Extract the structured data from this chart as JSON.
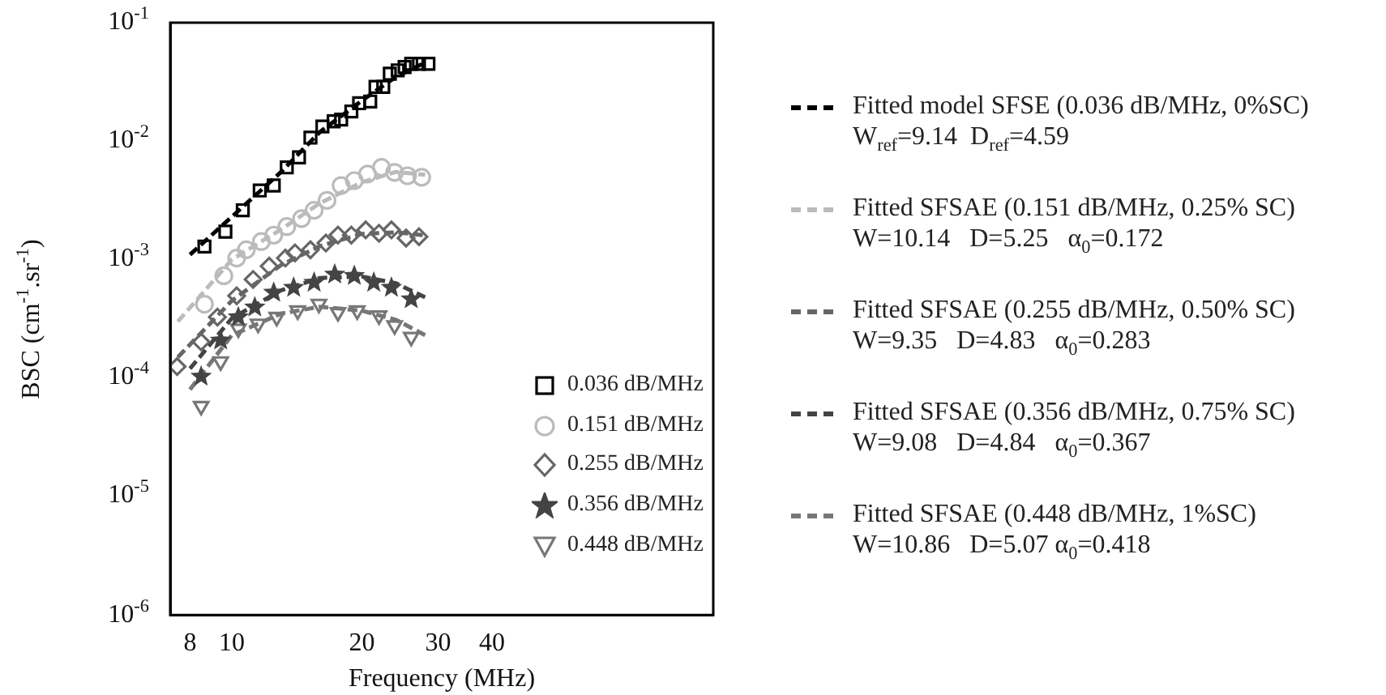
{
  "chart_data": {
    "type": "scatter",
    "xlabel": "Frequency (MHz)",
    "ylabel": "BSC (cm$^{-1}$.sr$^{-1}$)",
    "log": "xy",
    "xlim": [
      7.2,
      130
    ],
    "xticks": [
      8,
      10,
      20,
      30,
      40
    ],
    "ylim": [
      1e-06,
      0.1
    ],
    "yticks": [
      {
        "value": 0.1,
        "label": "10$^{-1}$"
      },
      {
        "value": 0.01,
        "label": "10$^{-2}$"
      },
      {
        "value": 0.001,
        "label": "10$^{-3}$"
      },
      {
        "value": 0.0001,
        "label": "10$^{-4}$"
      },
      {
        "value": 1e-05,
        "label": "10$^{-5}$"
      },
      {
        "value": 1e-06,
        "label": "10$^{-6}$"
      }
    ],
    "grid": false,
    "legend": "right",
    "series": [
      {
        "name": "0.036 dB/MHz",
        "color": "#000000",
        "marker": "square",
        "x": [
          8.64,
          9.66,
          10.6,
          11.6,
          12.5,
          13.4,
          14.3,
          15.2,
          16.2,
          17.2,
          17.9,
          18.9,
          19.7,
          20.9,
          21.5,
          22.4,
          23.2,
          24.2,
          25.1,
          26.0,
          27.1,
          28.5
        ],
        "values": [
          0.00129,
          0.00172,
          0.00261,
          0.00383,
          0.00422,
          0.006,
          0.0073,
          0.0107,
          0.0133,
          0.0147,
          0.0152,
          0.0178,
          0.0209,
          0.0216,
          0.0287,
          0.0287,
          0.0371,
          0.0396,
          0.0422,
          0.045,
          0.045,
          0.045
        ]
      },
      {
        "name": "0.151 dB/MHz",
        "color": "#bbbbbb",
        "marker": "circle",
        "x": [
          8.64,
          9.58,
          10.26,
          10.8,
          11.7,
          12.5,
          13.4,
          14.5,
          15.5,
          16.6,
          17.9,
          19.2,
          20.6,
          22.2,
          23.8,
          25.5,
          27.5
        ],
        "values": [
          0.00042,
          0.00073,
          0.00103,
          0.00121,
          0.00142,
          0.00161,
          0.0019,
          0.00222,
          0.00261,
          0.00316,
          0.00422,
          0.00464,
          0.00527,
          0.006,
          0.00545,
          0.0051,
          0.00495
        ]
      },
      {
        "name": "0.255 dB/MHz",
        "color": "#666666",
        "marker": "diamond",
        "x": [
          7.47,
          8.49,
          9.26,
          10.26,
          11.2,
          12.2,
          13.3,
          14.0,
          15.2,
          16.5,
          17.6,
          18.9,
          20.4,
          21.9,
          23.4,
          25.3,
          27.1
        ],
        "values": [
          0.000125,
          0.000202,
          0.000327,
          0.000495,
          0.00068,
          0.00088,
          0.00103,
          0.00114,
          0.00121,
          0.00138,
          0.00161,
          0.00161,
          0.00178,
          0.00167,
          0.00178,
          0.00152,
          0.00156
        ]
      },
      {
        "name": "0.356 dB/MHz",
        "color": "#444444",
        "marker": "star",
        "x": [
          8.49,
          9.42,
          10.35,
          11.3,
          12.5,
          13.9,
          15.5,
          17.3,
          19.2,
          21.3,
          23.4,
          26.0
        ],
        "values": [
          0.000103,
          0.000208,
          0.000327,
          0.000396,
          0.000527,
          0.00058,
          0.00064,
          0.00075,
          0.00073,
          0.00064,
          0.00058,
          0.000464
        ]
      },
      {
        "name": "0.448 dB/MHz",
        "color": "#777777",
        "marker": "triangle",
        "x": [
          8.49,
          9.42,
          10.35,
          11.5,
          12.7,
          14.2,
          15.9,
          17.6,
          19.5,
          21.9,
          23.8,
          26.0
        ],
        "values": [
          5.8e-05,
          0.000138,
          0.000261,
          0.000287,
          0.000327,
          0.000371,
          0.000422,
          0.000359,
          0.000371,
          0.000337,
          0.000278,
          0.000222
        ]
      },
      {
        "type": "line",
        "line_style": "dashed",
        "marker": "none",
        "name": "Fitted model SFSE (0.036 dB/MHz, 0%SC)\nW$_{ref}$=9.14  D$_{ref}$=4.59",
        "color": "#000000",
        "x": [
          8,
          10,
          13,
          16,
          20,
          24,
          28
        ],
        "values": [
          0.0011,
          0.0023,
          0.0055,
          0.012,
          0.022,
          0.035,
          0.046
        ]
      },
      {
        "type": "line",
        "line_style": "dashed",
        "marker": "none",
        "name": "Fitted SFSAE (0.151 dB/MHz, 0.25% SC)\nW=10.14   D=5.25   α$_{0}$=0.172",
        "color": "#bbbbbb",
        "x": [
          7.5,
          10,
          13,
          16,
          20,
          24,
          28
        ],
        "values": [
          0.0003,
          0.001,
          0.0018,
          0.003,
          0.0045,
          0.0055,
          0.0052
        ]
      },
      {
        "type": "line",
        "line_style": "dashed",
        "marker": "none",
        "name": "Fitted SFSAE (0.255 dB/MHz, 0.50% SC)\nW=9.35   D=4.83   α$_{0}$=0.283",
        "color": "#666666",
        "x": [
          7.5,
          10,
          13,
          16,
          20,
          24,
          28
        ],
        "values": [
          0.00015,
          0.00045,
          0.0009,
          0.0013,
          0.00165,
          0.0017,
          0.0016
        ]
      },
      {
        "type": "line",
        "line_style": "dashed",
        "marker": "none",
        "name": "Fitted SFSAE (0.356 dB/MHz, 0.75% SC)\nW=9.08   D=4.84   α$_{0}$=0.367",
        "color": "#444444",
        "x": [
          8,
          10,
          13,
          16,
          20,
          24,
          28
        ],
        "values": [
          0.00012,
          0.00032,
          0.00055,
          0.0007,
          0.00072,
          0.00063,
          0.00048
        ]
      },
      {
        "type": "line",
        "line_style": "dashed",
        "marker": "none",
        "name": "Fitted SFSAE (0.448 dB/MHz, 1%SC)\nW=10.86   D=5.07 α$_{0}$=0.418",
        "color": "#777777",
        "x": [
          8,
          10,
          13,
          16,
          20,
          24,
          28
        ],
        "values": [
          8e-05,
          0.00023,
          0.00035,
          0.0004,
          0.00037,
          0.00031,
          0.00023
        ]
      }
    ]
  }
}
